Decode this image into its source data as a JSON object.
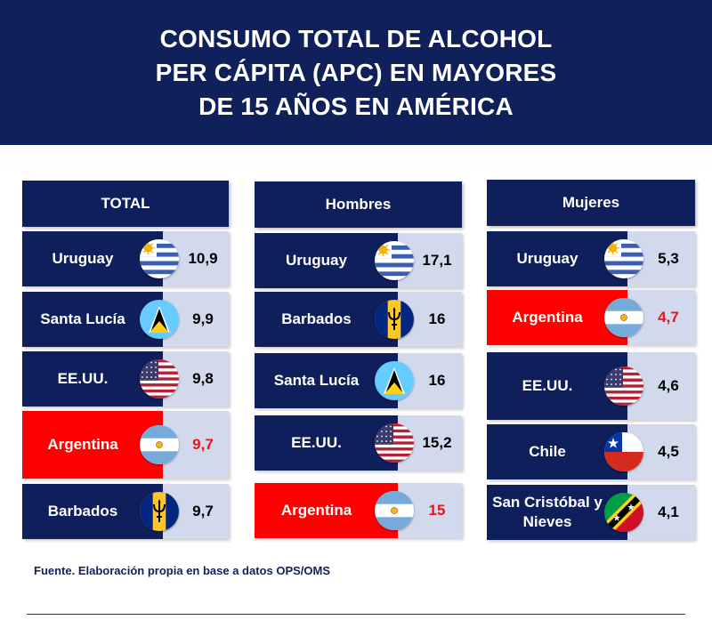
{
  "title_lines": [
    "CONSUMO TOTAL DE ALCOHOL",
    "PER CÁPITA (APC) EN MAYORES",
    "DE 15 AÑOS EN AMÉRICA"
  ],
  "source": "Fuente. Elaboración propia en base a datos OPS/OMS",
  "colors": {
    "navy": "#0f1f5c",
    "highlight": "#ff0000",
    "value_bg": "#d3d9ec",
    "highlight_text": "#e8161b"
  },
  "chart_data": [
    {
      "type": "table",
      "header": "TOTAL",
      "rows": [
        {
          "country": "Uruguay",
          "value": "10,9",
          "flag": "uruguay-flag-icon",
          "highlight": false
        },
        {
          "country": "Santa Lucía",
          "value": "9,9",
          "flag": "saint-lucia-flag-icon",
          "highlight": false
        },
        {
          "country": "EE.UU.",
          "value": "9,8",
          "flag": "usa-flag-icon",
          "highlight": false
        },
        {
          "country": "Argentina",
          "value": "9,7",
          "flag": "argentina-flag-icon",
          "highlight": true
        },
        {
          "country": "Barbados",
          "value": "9,7",
          "flag": "barbados-flag-icon",
          "highlight": false
        }
      ]
    },
    {
      "type": "table",
      "header": "Hombres",
      "rows": [
        {
          "country": "Uruguay",
          "value": "17,1",
          "flag": "uruguay-flag-icon",
          "highlight": false
        },
        {
          "country": "Barbados",
          "value": "16",
          "flag": "barbados-flag-icon",
          "highlight": false
        },
        {
          "country": "Santa Lucía",
          "value": "16",
          "flag": "saint-lucia-flag-icon",
          "highlight": false
        },
        {
          "country": "EE.UU.",
          "value": "15,2",
          "flag": "usa-flag-icon",
          "highlight": false
        },
        {
          "country": "Argentina",
          "value": "15",
          "flag": "argentina-flag-icon",
          "highlight": true
        }
      ]
    },
    {
      "type": "table",
      "header": "Mujeres",
      "rows": [
        {
          "country": "Uruguay",
          "value": "5,3",
          "flag": "uruguay-flag-icon",
          "highlight": false
        },
        {
          "country": "Argentina",
          "value": "4,7",
          "flag": "argentina-flag-icon",
          "highlight": true
        },
        {
          "country": "EE.UU.",
          "value": "4,6",
          "flag": "usa-flag-icon",
          "highlight": false
        },
        {
          "country": "Chile",
          "value": "4,5",
          "flag": "chile-flag-icon",
          "highlight": false
        },
        {
          "country": "San Cristóbal y Nieves",
          "value": "4,1",
          "flag": "saint-kitts-flag-icon",
          "highlight": false
        }
      ]
    }
  ]
}
